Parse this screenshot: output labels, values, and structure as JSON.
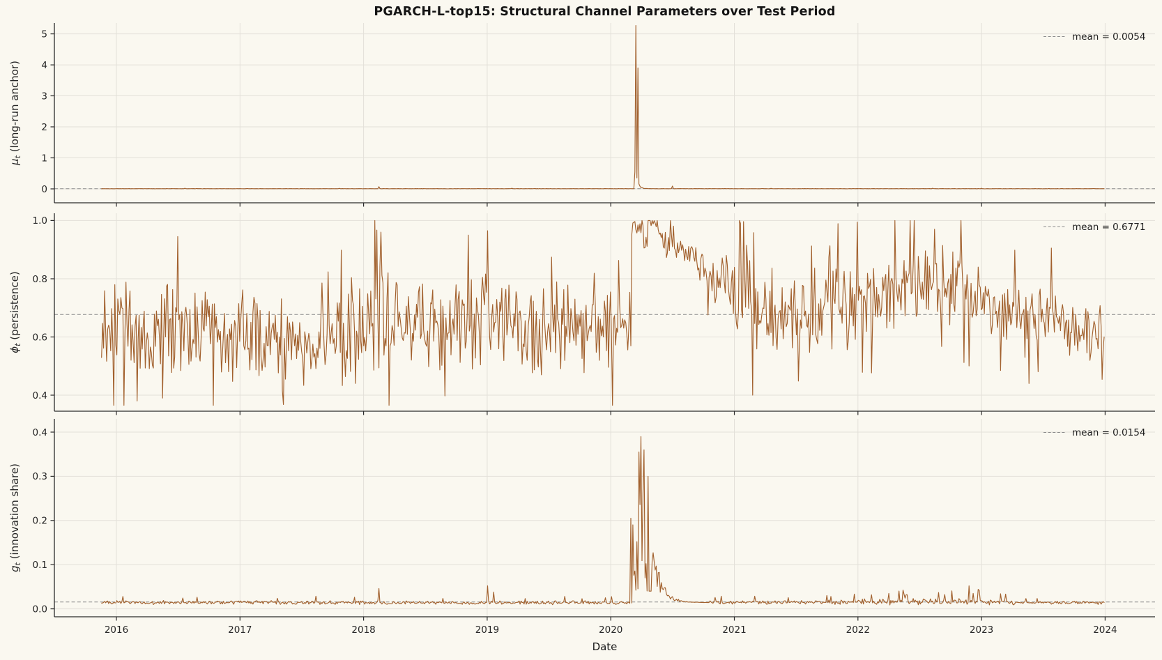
{
  "chart_data": {
    "type": "line",
    "title": "PGARCH-L-top15: Structural Channel Parameters over Test Period",
    "xlabel": "Date",
    "x_ticks": [
      {
        "v": 2016,
        "label": "2016"
      },
      {
        "v": 2017,
        "label": "2017"
      },
      {
        "v": 2018,
        "label": "2018"
      },
      {
        "v": 2019,
        "label": "2019"
      },
      {
        "v": 2020,
        "label": "2020"
      },
      {
        "v": 2021,
        "label": "2021"
      },
      {
        "v": 2022,
        "label": "2022"
      },
      {
        "v": 2023,
        "label": "2023"
      },
      {
        "v": 2024,
        "label": "2024"
      }
    ],
    "x_lim": [
      2015.5,
      2024.4
    ],
    "x_data_range": [
      2015.88,
      2024.0
    ],
    "grid": true,
    "legend_position": "upper right",
    "colors": {
      "line": "#a2612e",
      "mean_line": "#8a8a8a",
      "grid": "#e3e0d9",
      "spine": "#2b2b2b",
      "text": "#262626",
      "background": "#faf8f0"
    },
    "panels": [
      {
        "id": "mu",
        "ylabel": {
          "symbol": "μ",
          "sub": "t",
          "rest": " (long-run anchor)"
        },
        "ylim": [
          -0.45,
          5.35
        ],
        "yticks": [
          {
            "v": 0,
            "label": "0"
          },
          {
            "v": 1,
            "label": "1"
          },
          {
            "v": 2,
            "label": "2"
          },
          {
            "v": 3,
            "label": "3"
          },
          {
            "v": 4,
            "label": "4"
          },
          {
            "v": 5,
            "label": "5"
          }
        ],
        "mean": 0.0054,
        "legend_label": "mean = 0.0054",
        "summary": "Flat near 0.005 for whole test period; isolated needle spike to 5.27 (and 3.9) in March 2020; minor blips at 2018.1 and mid-2020.",
        "series": {
          "kind": "mu",
          "seed": 101,
          "baseline": 0.005,
          "noise": 0.0035,
          "floor": 0.0005,
          "decay": {
            "start": 2020.205,
            "tau": 0.02,
            "amp": 0.38
          },
          "spikes": [
            [
              2016.55,
              0.02
            ],
            [
              2017.8,
              0.015
            ],
            [
              2018.12,
              0.07
            ],
            [
              2019.2,
              0.018
            ],
            [
              2020.197,
              0.55
            ],
            [
              2020.205,
              5.27
            ],
            [
              2020.213,
              0.35
            ],
            [
              2020.222,
              3.9
            ],
            [
              2020.5,
              0.09
            ],
            [
              2021.3,
              0.015
            ],
            [
              2022.6,
              0.018
            ],
            [
              2023.0,
              0.02
            ]
          ]
        }
      },
      {
        "id": "phi",
        "ylabel": {
          "symbol": "ϕ",
          "sub": "t",
          "rest": " (persistence)"
        },
        "ylim": [
          0.345,
          1.025
        ],
        "yticks": [
          {
            "v": 0.4,
            "label": "0.4"
          },
          {
            "v": 0.6,
            "label": "0.6"
          },
          {
            "v": 0.8,
            "label": "0.8"
          },
          {
            "v": 1.0,
            "label": "1.0"
          }
        ],
        "mean": 0.6771,
        "legend_label": "mean = 0.6771",
        "summary": "Noisy daily persistence oscillating ~0.45-0.9 around 0.63; pinned at 1.0 during COVID (Mar-Jun 2020) then decays through ~0.8; elevated again mid-2022; occasional dips to ~0.37.",
        "series": {
          "kind": "phi",
          "seed": 424242,
          "clamp": [
            0.365,
            1.0
          ],
          "keyframes": [
            [
              2015.88,
              0.65,
              0.1
            ],
            [
              2016.3,
              0.63,
              0.1
            ],
            [
              2016.8,
              0.62,
              0.09
            ],
            [
              2017.2,
              0.59,
              0.09
            ],
            [
              2017.6,
              0.57,
              0.09
            ],
            [
              2018.0,
              0.66,
              0.12
            ],
            [
              2018.2,
              0.67,
              0.11
            ],
            [
              2018.6,
              0.62,
              0.1
            ],
            [
              2019.0,
              0.67,
              0.1
            ],
            [
              2019.4,
              0.62,
              0.09
            ],
            [
              2019.8,
              0.63,
              0.09
            ],
            [
              2020.15,
              0.62,
              0.08
            ],
            [
              2020.9,
              0.82,
              0.06
            ],
            [
              2021.05,
              0.72,
              0.09
            ],
            [
              2021.3,
              0.68,
              0.09
            ],
            [
              2021.8,
              0.68,
              0.09
            ],
            [
              2022.1,
              0.72,
              0.09
            ],
            [
              2022.45,
              0.79,
              0.08
            ],
            [
              2022.8,
              0.77,
              0.08
            ],
            [
              2023.1,
              0.7,
              0.08
            ],
            [
              2023.45,
              0.66,
              0.08
            ],
            [
              2023.75,
              0.63,
              0.07
            ],
            [
              2024.0,
              0.61,
              0.06
            ]
          ],
          "plateau": {
            "start": 2020.17,
            "end": 2020.42,
            "level": 0.985,
            "noise": 0.03,
            "cap": 1.0
          },
          "post": {
            "end": 2020.78,
            "from": 0.95,
            "to": 0.83,
            "noise": 0.05
          },
          "extremes": [
            [
              2016.17,
              0.38
            ],
            [
              2016.5,
              0.945
            ],
            [
              2017.35,
              0.368
            ],
            [
              2018.09,
              1.0
            ],
            [
              2018.14,
              0.96
            ],
            [
              2018.85,
              0.95
            ],
            [
              2019.0,
              0.965
            ],
            [
              2021.05,
              0.99
            ],
            [
              2021.15,
              0.4
            ],
            [
              2022.42,
              1.0
            ],
            [
              2022.62,
              0.97
            ],
            [
              2023.38,
              0.44
            ]
          ]
        }
      },
      {
        "id": "g",
        "ylabel": {
          "symbol": "g",
          "sub": "t",
          "rest": " (innovation share)"
        },
        "ylim": [
          -0.018,
          0.43
        ],
        "yticks": [
          {
            "v": 0.0,
            "label": "0.0"
          },
          {
            "v": 0.1,
            "label": "0.1"
          },
          {
            "v": 0.2,
            "label": "0.2"
          },
          {
            "v": 0.3,
            "label": "0.3"
          },
          {
            "v": 0.4,
            "label": "0.4"
          }
        ],
        "mean": 0.0154,
        "legend_label": "mean = 0.0154",
        "summary": "Innovation share hovers near 0.015; COVID burst Mar-Apr 2020 spiking to 0.39 with cluster 0.25-0.36 then exponential decay back by mid-2020; small spikes at 2018.1, 2019.0 and late 2022.",
        "series": {
          "kind": "g",
          "seed": 777,
          "keyframes": [
            [
              2015.88,
              0.0145,
              0.0035
            ],
            [
              2019.9,
              0.014,
              0.0035
            ],
            [
              2021.9,
              0.0145,
              0.004
            ],
            [
              2022.1,
              0.016,
              0.006
            ],
            [
              2023.1,
              0.016,
              0.006
            ],
            [
              2023.3,
              0.014,
              0.0035
            ],
            [
              2024.0,
              0.0135,
              0.003
            ]
          ],
          "burst": {
            "start": 2020.18,
            "end": 2020.33,
            "min": 0.04,
            "max": 0.39,
            "peaks": [
              [
                2020.165,
                0.205
              ],
              [
                2020.175,
                0.19
              ],
              [
                2020.225,
                0.355
              ],
              [
                2020.245,
                0.39
              ],
              [
                2020.27,
                0.36
              ],
              [
                2020.3,
                0.3
              ]
            ]
          },
          "decay": {
            "end": 2020.8,
            "amp": 0.115,
            "tau": 0.07
          },
          "spikes": [
            [
              2016.05,
              0.028
            ],
            [
              2017.3,
              0.024
            ],
            [
              2018.12,
              0.046
            ],
            [
              2019.0,
              0.052
            ],
            [
              2019.05,
              0.038
            ],
            [
              2021.78,
              0.028
            ],
            [
              2022.25,
              0.035
            ],
            [
              2022.4,
              0.032
            ],
            [
              2022.9,
              0.052
            ],
            [
              2022.97,
              0.044
            ],
            [
              2023.15,
              0.034
            ]
          ]
        }
      }
    ]
  }
}
